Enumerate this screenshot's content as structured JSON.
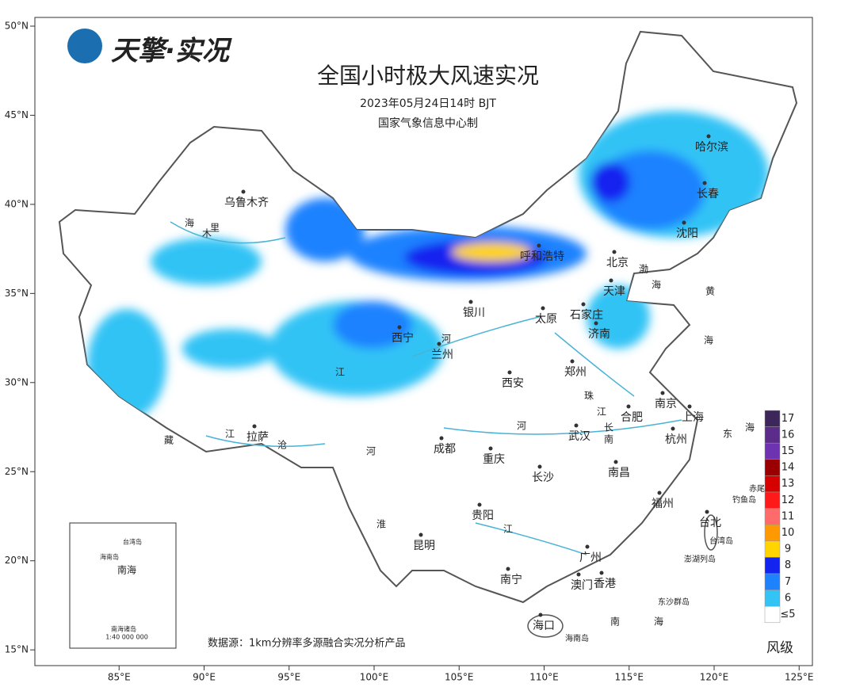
{
  "header": {
    "logo": "天擎·实况",
    "title": "全国小时极大风速实况",
    "subtitle": "2023年05月24日14时 BJT",
    "producer": "国家气象信息中心制"
  },
  "source": "数据源：1km分辨率多源融合实况分析产品",
  "lon_ticks": [
    {
      "value": 85,
      "label": "85°E"
    },
    {
      "value": 90,
      "label": "90°E"
    },
    {
      "value": 95,
      "label": "95°E"
    },
    {
      "value": 100,
      "label": "100°E"
    },
    {
      "value": 105,
      "label": "105°E"
    },
    {
      "value": 110,
      "label": "110°E"
    },
    {
      "value": 115,
      "label": "115°E"
    },
    {
      "value": 120,
      "label": "120°E"
    },
    {
      "value": 125,
      "label": "125°E"
    }
  ],
  "lat_ticks": [
    {
      "value": 50,
      "label": "50°N"
    },
    {
      "value": 45,
      "label": "45°N"
    },
    {
      "value": 40,
      "label": "40°N"
    },
    {
      "value": 35,
      "label": "35°N"
    },
    {
      "value": 30,
      "label": "30°N"
    },
    {
      "value": 25,
      "label": "25°N"
    },
    {
      "value": 20,
      "label": "20°N"
    },
    {
      "value": 15,
      "label": "15°N"
    }
  ],
  "cities": [
    "乌鲁木齐",
    "呼和浩特",
    "北京",
    "天津",
    "哈尔滨",
    "长春",
    "沈阳",
    "银川",
    "太原",
    "石家庄",
    "济南",
    "西宁",
    "兰州",
    "郑州",
    "西安",
    "南京",
    "上海",
    "合肥",
    "武汉",
    "杭州",
    "拉萨",
    "成都",
    "重庆",
    "长沙",
    "南昌",
    "福州",
    "台北",
    "贵阳",
    "昆明",
    "南宁",
    "广州",
    "澳门",
    "香港",
    "海口"
  ],
  "water_labels": [
    "渤",
    "海",
    "黄",
    "海",
    "东",
    "海",
    "南",
    "海",
    "南",
    "海",
    "里",
    "木",
    "河",
    "河",
    "长",
    "江",
    "珠",
    "江",
    "淮",
    "河",
    "江",
    "沧",
    "藏",
    "江"
  ],
  "islands": [
    "赤尾屿",
    "钓鱼岛",
    "台湾岛",
    "澎湖列岛",
    "东沙群岛",
    "海南岛"
  ],
  "inset": {
    "labels": [
      "台湾岛",
      "海南岛",
      "南海",
      "南海诸岛"
    ],
    "scale": "1:40 000 000"
  },
  "legend": {
    "title": "风级",
    "levels": [
      {
        "value": 17,
        "color": "#3d2659"
      },
      {
        "value": 16,
        "color": "#5b2c8a"
      },
      {
        "value": 15,
        "color": "#6d33b0"
      },
      {
        "value": 14,
        "color": "#9a0000"
      },
      {
        "value": 13,
        "color": "#d60000"
      },
      {
        "value": 12,
        "color": "#ff1a1a"
      },
      {
        "value": 11,
        "color": "#ff6a6a"
      },
      {
        "value": 10,
        "color": "#ff9900"
      },
      {
        "value": 9,
        "color": "#ffd400"
      },
      {
        "value": 8,
        "color": "#1424f0"
      },
      {
        "value": 7,
        "color": "#1e82ff"
      },
      {
        "value": 6,
        "color": "#33c3f5"
      },
      {
        "value": 5,
        "label": "≤5",
        "color": "#ffffff"
      }
    ]
  }
}
